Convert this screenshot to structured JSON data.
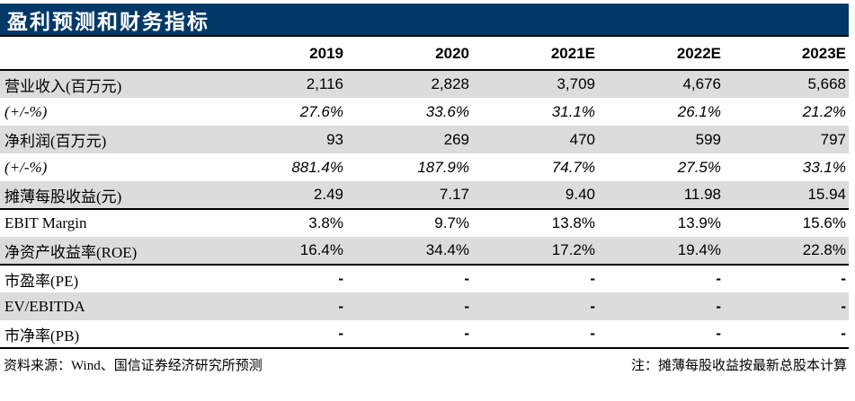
{
  "title": "盈利预测和财务指标",
  "table": {
    "columns": [
      "2019",
      "2020",
      "2021E",
      "2022E",
      "2023E"
    ],
    "rows": [
      {
        "label": "营业收入(百万元)",
        "values": [
          "2,116",
          "2,828",
          "3,709",
          "4,676",
          "5,668"
        ]
      },
      {
        "label": "(+/-%)",
        "values": [
          "27.6%",
          "33.6%",
          "31.1%",
          "26.1%",
          "21.2%"
        ]
      },
      {
        "label": "净利润(百万元)",
        "values": [
          "93",
          "269",
          "470",
          "599",
          "797"
        ]
      },
      {
        "label": "(+/-%)",
        "values": [
          "881.4%",
          "187.9%",
          "74.7%",
          "27.5%",
          "33.1%"
        ]
      },
      {
        "label": "摊薄每股收益(元)",
        "values": [
          "2.49",
          "7.17",
          "9.40",
          "11.98",
          "15.94"
        ]
      },
      {
        "label": "EBIT Margin",
        "values": [
          "3.8%",
          "9.7%",
          "13.8%",
          "13.9%",
          "15.6%"
        ]
      },
      {
        "label": "净资产收益率(ROE)",
        "values": [
          "16.4%",
          "34.4%",
          "17.2%",
          "19.4%",
          "22.8%"
        ]
      },
      {
        "label": "市盈率(PE)",
        "values": [
          "-",
          "-",
          "-",
          "-",
          "-"
        ]
      },
      {
        "label": "EV/EBITDA",
        "values": [
          "-",
          "-",
          "-",
          "-",
          "-"
        ]
      },
      {
        "label": "市净率(PB)",
        "values": [
          "-",
          "-",
          "-",
          "-",
          "-"
        ]
      }
    ]
  },
  "footer": {
    "source": "资料来源：Wind、国信证券经济研究所预测",
    "note": "注：摊薄每股收益按最新总股本计算"
  },
  "colors": {
    "header_bar": "#003868",
    "row_shade": "#DCDCDC",
    "border": "#000000",
    "title_text": "#FFFFFF"
  }
}
